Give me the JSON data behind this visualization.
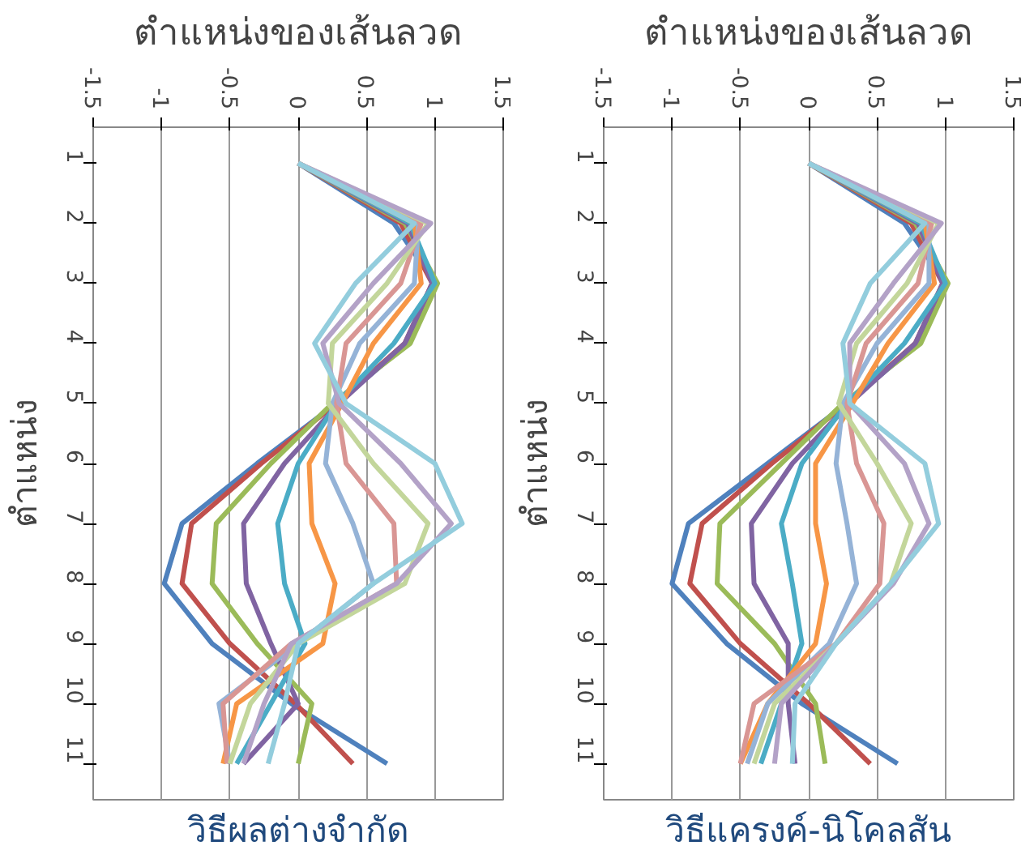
{
  "chart_data": [
    {
      "type": "line",
      "orientation": "horizontal",
      "title": "ตำแหน่งของเส้นลวด",
      "ylabel": "ตำแหน่ง",
      "xlabel": "วิธีผลต่างจำกัด",
      "categories": [
        "1",
        "2",
        "3",
        "4",
        "5",
        "6",
        "7",
        "8",
        "9",
        "10",
        "11"
      ],
      "xlim": [
        -1.5,
        1.5
      ],
      "xticks": [
        -1.5,
        -1,
        -0.5,
        0,
        0.5,
        1,
        1.5
      ],
      "grid": "x",
      "marker": "none",
      "line_style": "solid",
      "series": [
        {
          "color": "#4f81bd",
          "values": [
            0,
            0.7,
            1.0,
            0.8,
            0.28,
            -0.3,
            -0.85,
            -0.98,
            -0.63,
            -0.05,
            0.65
          ]
        },
        {
          "color": "#c0504d",
          "values": [
            0,
            0.75,
            0.98,
            0.78,
            0.28,
            -0.27,
            -0.78,
            -0.85,
            -0.5,
            -0.02,
            0.4
          ]
        },
        {
          "color": "#9bbb59",
          "values": [
            0,
            0.78,
            1.02,
            0.82,
            0.25,
            -0.2,
            -0.6,
            -0.63,
            -0.3,
            0.1,
            0.0
          ]
        },
        {
          "color": "#8064a2",
          "values": [
            0,
            0.8,
            0.98,
            0.78,
            0.3,
            -0.1,
            -0.4,
            -0.38,
            -0.2,
            0.0,
            -0.4
          ]
        },
        {
          "color": "#4bacc6",
          "values": [
            0,
            0.82,
            1.0,
            0.7,
            0.28,
            0.0,
            -0.15,
            -0.1,
            0.05,
            -0.2,
            -0.45
          ]
        },
        {
          "color": "#f79646",
          "values": [
            0,
            0.85,
            0.9,
            0.55,
            0.32,
            0.08,
            0.1,
            0.27,
            0.18,
            -0.45,
            -0.55
          ]
        },
        {
          "color": "#95b3d7",
          "values": [
            0,
            0.88,
            0.85,
            0.45,
            0.25,
            0.2,
            0.4,
            0.55,
            0.0,
            -0.58,
            -0.5
          ]
        },
        {
          "color": "#d99694",
          "values": [
            0,
            0.9,
            0.75,
            0.35,
            0.28,
            0.35,
            0.7,
            0.72,
            -0.05,
            -0.55,
            -0.52
          ]
        },
        {
          "color": "#c3d69b",
          "values": [
            0,
            0.95,
            0.65,
            0.25,
            0.22,
            0.55,
            0.95,
            0.78,
            0.0,
            -0.35,
            -0.5
          ]
        },
        {
          "color": "#b3a2c7",
          "values": [
            0,
            0.97,
            0.55,
            0.18,
            0.3,
            0.75,
            1.12,
            0.72,
            -0.05,
            -0.25,
            -0.4
          ]
        },
        {
          "color": "#93cddd",
          "values": [
            0,
            0.85,
            0.42,
            0.12,
            0.35,
            1.0,
            1.2,
            0.55,
            0.0,
            -0.1,
            -0.22
          ]
        }
      ]
    },
    {
      "type": "line",
      "orientation": "horizontal",
      "title": "ตำแหน่งของเส้นลวด",
      "ylabel": "ตำแหน่ง",
      "xlabel": "วิธีแครงค์-นิโคลสัน",
      "categories": [
        "1",
        "2",
        "3",
        "4",
        "5",
        "6",
        "7",
        "8",
        "9",
        "10",
        "11"
      ],
      "xlim": [
        -1.5,
        1.5
      ],
      "xticks": [
        -1.5,
        -1,
        -0.5,
        0,
        0.5,
        1,
        1.5
      ],
      "grid": "x",
      "marker": "none",
      "line_style": "solid",
      "series": [
        {
          "color": "#4f81bd",
          "values": [
            0,
            0.7,
            1.0,
            0.8,
            0.28,
            -0.3,
            -0.88,
            -1.0,
            -0.6,
            -0.05,
            0.65
          ]
        },
        {
          "color": "#c0504d",
          "values": [
            0,
            0.75,
            0.98,
            0.78,
            0.28,
            -0.27,
            -0.78,
            -0.87,
            -0.5,
            0.0,
            0.45
          ]
        },
        {
          "color": "#9bbb59",
          "values": [
            0,
            0.78,
            1.02,
            0.82,
            0.25,
            -0.2,
            -0.65,
            -0.67,
            -0.25,
            0.05,
            0.12
          ]
        },
        {
          "color": "#8064a2",
          "values": [
            0,
            0.8,
            0.98,
            0.78,
            0.3,
            -0.12,
            -0.42,
            -0.4,
            -0.15,
            -0.15,
            -0.1
          ]
        },
        {
          "color": "#4bacc6",
          "values": [
            0,
            0.82,
            1.0,
            0.7,
            0.28,
            -0.05,
            -0.2,
            -0.12,
            -0.05,
            -0.2,
            -0.35
          ]
        },
        {
          "color": "#f79646",
          "values": [
            0,
            0.85,
            0.92,
            0.58,
            0.32,
            0.05,
            0.05,
            0.13,
            0.05,
            -0.3,
            -0.5
          ]
        },
        {
          "color": "#95b3d7",
          "values": [
            0,
            0.88,
            0.88,
            0.5,
            0.25,
            0.2,
            0.28,
            0.35,
            0.15,
            -0.3,
            -0.45
          ]
        },
        {
          "color": "#d99694",
          "values": [
            0,
            0.9,
            0.8,
            0.42,
            0.28,
            0.35,
            0.55,
            0.52,
            0.2,
            -0.4,
            -0.5
          ]
        },
        {
          "color": "#c3d69b",
          "values": [
            0,
            0.95,
            0.72,
            0.35,
            0.22,
            0.5,
            0.75,
            0.6,
            0.2,
            -0.25,
            -0.4
          ]
        },
        {
          "color": "#b3a2c7",
          "values": [
            0,
            0.97,
            0.62,
            0.3,
            0.3,
            0.7,
            0.88,
            0.62,
            0.2,
            -0.2,
            -0.25
          ]
        },
        {
          "color": "#93cddd",
          "values": [
            0,
            0.85,
            0.45,
            0.25,
            0.3,
            0.85,
            0.95,
            0.6,
            0.2,
            -0.1,
            -0.12
          ]
        }
      ]
    }
  ]
}
